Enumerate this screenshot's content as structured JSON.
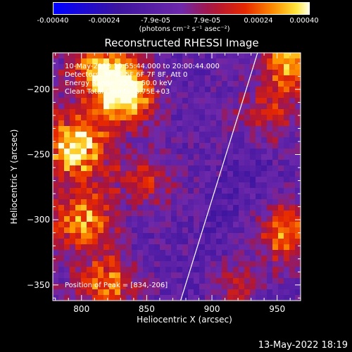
{
  "colorbar": {
    "tick_labels": [
      "-0.00040",
      "-0.00024",
      "-7.9e-05",
      "7.9e-05",
      "0.00024",
      "0.00040"
    ],
    "unit_label": "(photons cm⁻² s⁻¹ asec⁻²)",
    "range": [
      -0.0004,
      0.0004
    ]
  },
  "chart_data": {
    "type": "heatmap",
    "title": "Reconstructed RHESSI Image",
    "xlabel": "Heliocentric X (arcsec)",
    "ylabel": "Heliocentric Y (arcsec)",
    "xlim": [
      778,
      968
    ],
    "ylim": [
      -362,
      -172
    ],
    "x_ticks": [
      800,
      850,
      900,
      950
    ],
    "y_ticks": [
      -200,
      -250,
      -300,
      -350
    ],
    "annotations": [
      "10-May-2013 19:55:44.000 to 20:00:44.000",
      "Detectors: 3F 4F 5F 6F 7F 8F, Att 0",
      "Energy Range: 25.0 - 50.0 keV",
      "Clean    Total Counts: 6.75E+03"
    ],
    "peak_label": "Position of Peak = [834,-206]",
    "peak": [
      834,
      -206
    ],
    "limb_line": [
      [
        876,
        -362
      ],
      [
        935,
        -172
      ]
    ],
    "colormap": "red-temperature",
    "hot_regions": [
      {
        "x": 834,
        "y": -205,
        "strength": 1.0
      },
      {
        "x": 795,
        "y": -245,
        "strength": 0.95
      },
      {
        "x": 800,
        "y": -300,
        "strength": 0.7
      },
      {
        "x": 815,
        "y": -185,
        "strength": 0.75
      },
      {
        "x": 960,
        "y": -180,
        "strength": 0.85
      },
      {
        "x": 955,
        "y": -310,
        "strength": 0.75
      },
      {
        "x": 820,
        "y": -350,
        "strength": 0.6
      },
      {
        "x": 850,
        "y": -270,
        "strength": 0.45
      },
      {
        "x": 940,
        "y": -220,
        "strength": 0.5
      },
      {
        "x": 920,
        "y": -350,
        "strength": 0.45
      }
    ]
  },
  "footer_timestamp": "13-May-2022 18:19"
}
